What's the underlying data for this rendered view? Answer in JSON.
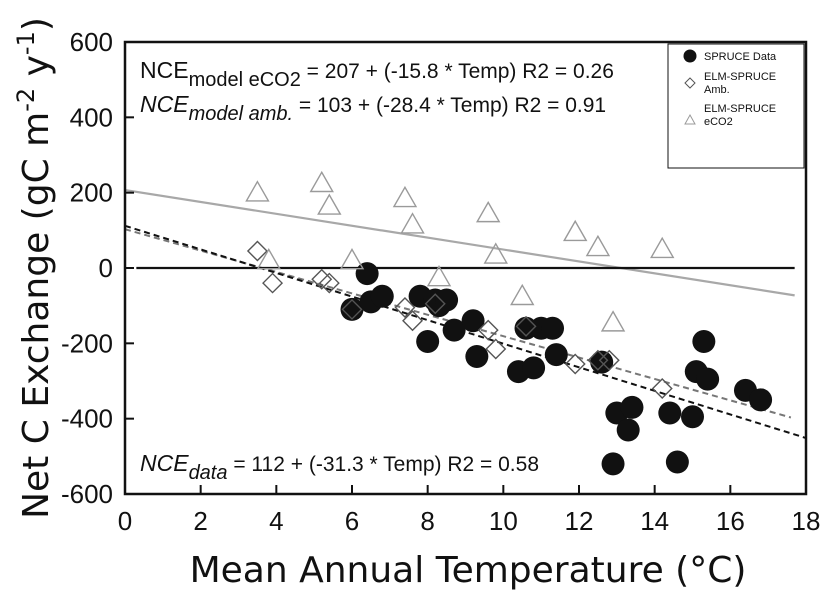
{
  "chart_data": {
    "type": "scatter",
    "xlabel": "Mean Annual Temperature (°C)",
    "ylabel_parts": {
      "a": "Net C Exchange (gC m",
      "b": "-2",
      "c": " y",
      "d": "-1",
      "e": ")"
    },
    "xlim": [
      0,
      18
    ],
    "ylim": [
      -600,
      600
    ],
    "x_ticks": [
      0,
      2,
      4,
      6,
      8,
      10,
      12,
      14,
      16,
      18
    ],
    "y_ticks": [
      -600,
      -400,
      -200,
      0,
      200,
      400,
      600
    ],
    "x_tick_labels": [
      "0",
      "2",
      "4",
      "6",
      "8",
      "10",
      "12",
      "14",
      "16",
      "18"
    ],
    "y_tick_labels": [
      "-600",
      "-400",
      "-200",
      "0",
      "200",
      "400",
      "600"
    ],
    "series": [
      {
        "name": "SPRUCE Data",
        "marker": "filled-circle",
        "color": "#111111",
        "points": [
          [
            6.0,
            -110
          ],
          [
            6.4,
            -15
          ],
          [
            6.5,
            -90
          ],
          [
            6.8,
            -75
          ],
          [
            7.8,
            -75
          ],
          [
            8.0,
            -195
          ],
          [
            8.2,
            -85
          ],
          [
            8.3,
            -100
          ],
          [
            8.5,
            -85
          ],
          [
            8.7,
            -165
          ],
          [
            9.2,
            -140
          ],
          [
            9.3,
            -235
          ],
          [
            10.4,
            -275
          ],
          [
            10.6,
            -160
          ],
          [
            10.8,
            -265
          ],
          [
            11.0,
            -160
          ],
          [
            11.3,
            -160
          ],
          [
            11.4,
            -230
          ],
          [
            12.6,
            -250
          ],
          [
            12.9,
            -520
          ],
          [
            13.0,
            -385
          ],
          [
            13.3,
            -430
          ],
          [
            13.4,
            -370
          ],
          [
            14.4,
            -385
          ],
          [
            14.6,
            -515
          ],
          [
            15.0,
            -395
          ],
          [
            15.1,
            -275
          ],
          [
            15.3,
            -195
          ],
          [
            15.4,
            -295
          ],
          [
            16.4,
            -325
          ],
          [
            16.8,
            -350
          ]
        ]
      },
      {
        "name": "ELM-SPRUCE Amb.",
        "marker": "open-diamond",
        "color": "#555555",
        "points": [
          [
            3.5,
            45
          ],
          [
            3.9,
            -40
          ],
          [
            5.2,
            -30
          ],
          [
            5.4,
            -40
          ],
          [
            6.0,
            -110
          ],
          [
            7.4,
            -105
          ],
          [
            7.6,
            -140
          ],
          [
            8.2,
            -95
          ],
          [
            9.6,
            -165
          ],
          [
            9.8,
            -215
          ],
          [
            10.6,
            -155
          ],
          [
            11.9,
            -255
          ],
          [
            12.5,
            -245
          ],
          [
            12.8,
            -245
          ],
          [
            14.2,
            -320
          ]
        ]
      },
      {
        "name": "ELM-SPRUCE eCO2",
        "marker": "open-triangle",
        "color": "#9a9a9a",
        "points": [
          [
            3.5,
            200
          ],
          [
            3.8,
            20
          ],
          [
            5.2,
            225
          ],
          [
            5.4,
            165
          ],
          [
            6.0,
            20
          ],
          [
            7.4,
            185
          ],
          [
            7.6,
            115
          ],
          [
            8.3,
            -25
          ],
          [
            9.6,
            145
          ],
          [
            9.8,
            35
          ],
          [
            10.5,
            -75
          ],
          [
            11.9,
            95
          ],
          [
            12.5,
            55
          ],
          [
            12.9,
            -145
          ],
          [
            14.2,
            50
          ]
        ]
      }
    ],
    "fit_lines": [
      {
        "name": "model eCO2 fit",
        "intercept": 207,
        "slope": -15.8,
        "x_range": [
          0,
          17.7
        ],
        "style": "solid",
        "color": "#a8a8a8"
      },
      {
        "name": "model amb. fit",
        "intercept": 103,
        "slope": -28.4,
        "x_range": [
          0,
          17.6
        ],
        "style": "dashed",
        "color": "#777777"
      },
      {
        "name": "data fit",
        "intercept": 112,
        "slope": -31.3,
        "x_range": [
          0,
          18
        ],
        "style": "dashed",
        "color": "#111111"
      },
      {
        "name": "zero line",
        "intercept": 0,
        "slope": 0,
        "x_range": [
          0.3,
          17.7
        ],
        "style": "solid",
        "color": "#111111"
      }
    ],
    "equations": {
      "eco2": {
        "main": "NCE",
        "sub": "model eCO2",
        "rest": " = 207 + (-15.8 * Temp) R2 = 0.26"
      },
      "amb": {
        "main": "NCE",
        "sub": "model amb.",
        "rest": " = 103 + (-28.4 * Temp) R2 = 0.91"
      },
      "data": {
        "main": "NCE",
        "sub": "data",
        "rest": " = 112 + (-31.3 * Temp) R2 = 0.58"
      }
    },
    "legend": {
      "placement": "top-right",
      "items": [
        {
          "line1": "SPRUCE Data",
          "line2": ""
        },
        {
          "line1": "ELM-SPRUCE",
          "line2": "Amb."
        },
        {
          "line1": "ELM-SPRUCE",
          "line2": "eCO2"
        }
      ]
    }
  }
}
